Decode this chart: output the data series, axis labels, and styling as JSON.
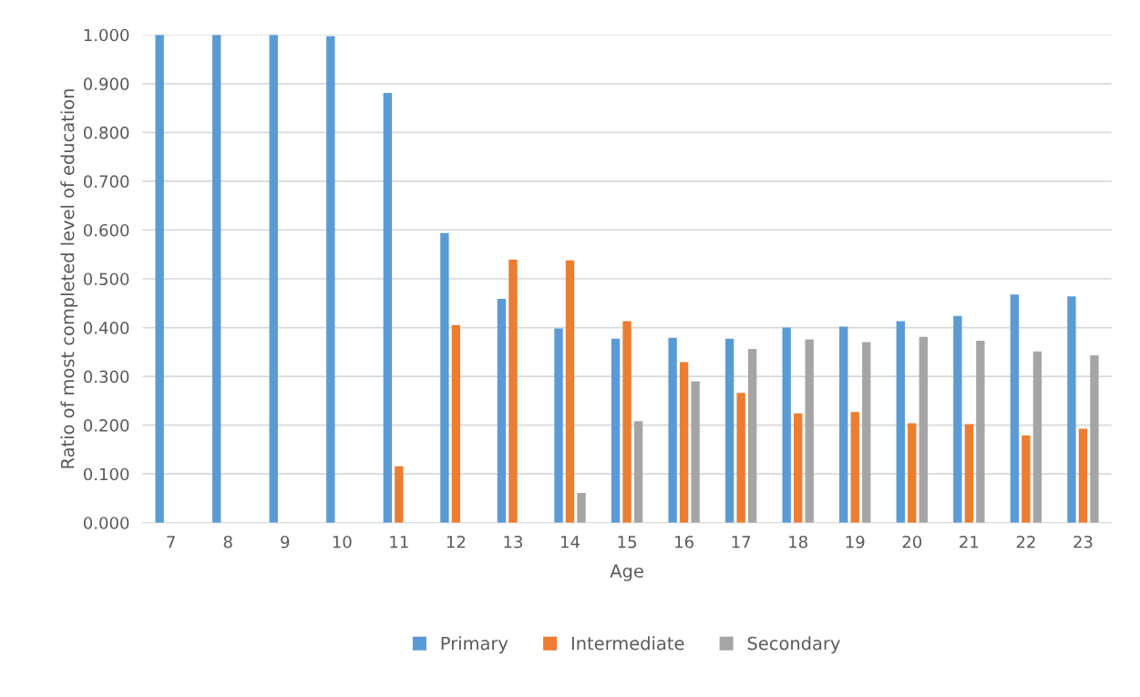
{
  "chart_data": {
    "type": "bar",
    "xlabel": "Age",
    "ylabel": "Ratio of most completed level of education",
    "categories": [
      "7",
      "8",
      "9",
      "10",
      "11",
      "12",
      "13",
      "14",
      "15",
      "16",
      "17",
      "18",
      "19",
      "20",
      "21",
      "22",
      "23"
    ],
    "series": [
      {
        "name": "Primary",
        "color": "#5b9bd5",
        "values": [
          1.0,
          1.0,
          1.0,
          0.997,
          0.881,
          0.594,
          0.459,
          0.398,
          0.377,
          0.379,
          0.377,
          0.4,
          0.402,
          0.413,
          0.424,
          0.468,
          0.464
        ]
      },
      {
        "name": "Intermediate",
        "color": "#ed7d31",
        "values": [
          0,
          0,
          0,
          0,
          0.116,
          0.405,
          0.539,
          0.538,
          0.413,
          0.329,
          0.266,
          0.224,
          0.227,
          0.204,
          0.202,
          0.179,
          0.193
        ]
      },
      {
        "name": "Secondary",
        "color": "#a5a5a5",
        "values": [
          0,
          0,
          0,
          0,
          0,
          0,
          0,
          0.061,
          0.208,
          0.29,
          0.356,
          0.376,
          0.37,
          0.381,
          0.373,
          0.351,
          0.343
        ]
      }
    ],
    "ylim": [
      0,
      1.0
    ],
    "yticks": [
      {
        "value": 0,
        "label": "0.000"
      },
      {
        "value": 0.1,
        "label": "0.100"
      },
      {
        "value": 0.2,
        "label": "0.200"
      },
      {
        "value": 0.3,
        "label": "0.300"
      },
      {
        "value": 0.4,
        "label": "0.400"
      },
      {
        "value": 0.5,
        "label": "0.500"
      },
      {
        "value": 0.6,
        "label": "0.600"
      },
      {
        "value": 0.7,
        "label": "0.700"
      },
      {
        "value": 0.8,
        "label": "0.800"
      },
      {
        "value": 0.9,
        "label": "0.900"
      },
      {
        "value": 1.0,
        "label": "1.000"
      }
    ],
    "grid": "y",
    "legend": "bottom"
  }
}
